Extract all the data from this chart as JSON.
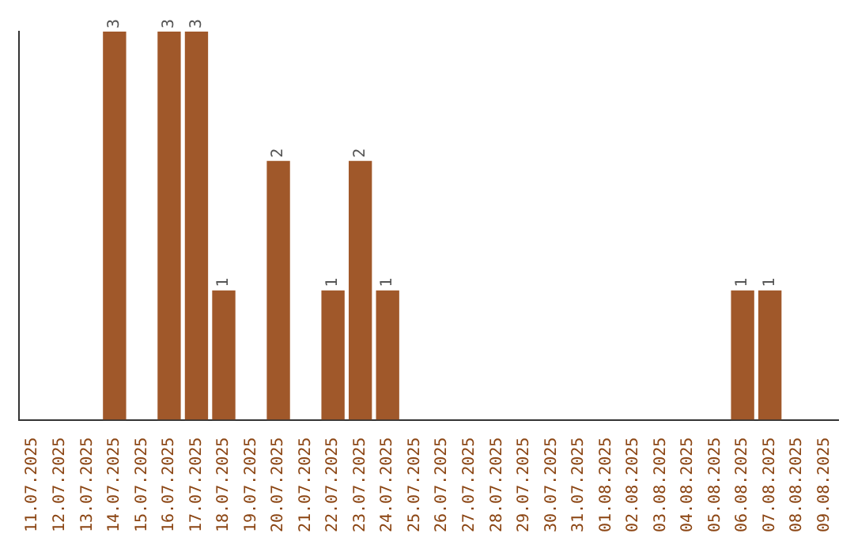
{
  "chart_data": {
    "type": "bar",
    "categories": [
      "11.07.2025",
      "12.07.2025",
      "13.07.2025",
      "14.07.2025",
      "15.07.2025",
      "16.07.2025",
      "17.07.2025",
      "18.07.2025",
      "19.07.2025",
      "20.07.2025",
      "21.07.2025",
      "22.07.2025",
      "23.07.2025",
      "24.07.2025",
      "25.07.2025",
      "26.07.2025",
      "27.07.2025",
      "28.07.2025",
      "29.07.2025",
      "30.07.2025",
      "31.07.2025",
      "01.08.2025",
      "02.08.2025",
      "03.08.2025",
      "04.08.2025",
      "05.08.2025",
      "06.08.2025",
      "07.08.2025",
      "08.08.2025",
      "09.08.2025"
    ],
    "values": [
      null,
      null,
      null,
      3,
      null,
      3,
      3,
      1,
      null,
      2,
      null,
      1,
      2,
      1,
      null,
      null,
      null,
      null,
      null,
      null,
      null,
      null,
      null,
      null,
      null,
      null,
      1,
      1,
      null,
      null
    ],
    "color": "#a0582a",
    "data_labels": true,
    "grid": false,
    "legend": false
  }
}
